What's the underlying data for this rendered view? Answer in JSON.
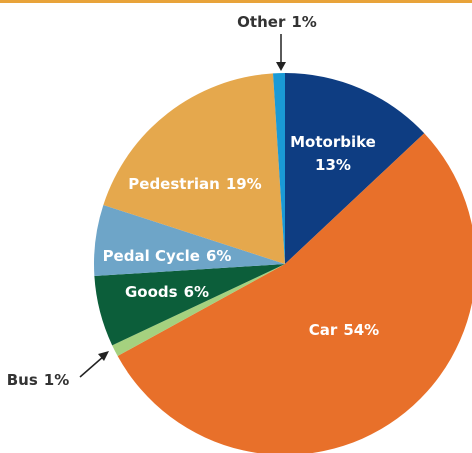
{
  "chart_data": {
    "type": "pie",
    "categories": [
      "Motorbike",
      "Car",
      "Bus",
      "Goods",
      "Pedal Cycle",
      "Pedestrian",
      "Other"
    ],
    "values": [
      13,
      54,
      1,
      6,
      6,
      19,
      1
    ],
    "value_labels": [
      "13%",
      "54%",
      "1%",
      "6%",
      "6%",
      "19%",
      "1%"
    ],
    "colors": [
      "#0e3d82",
      "#e8702a",
      "#a5d17f",
      "#0c5e3a",
      "#6ea5c8",
      "#e5a84d",
      "#1a9ad6"
    ]
  }
}
